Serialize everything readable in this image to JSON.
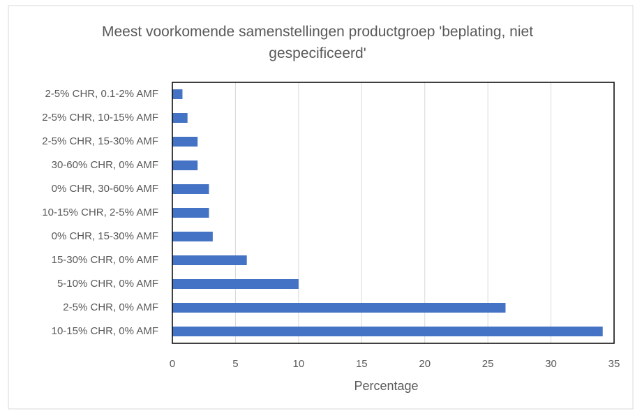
{
  "chart_data": {
    "type": "hbar",
    "title": "Meest voorkomende samenstellingen productgroep 'beplating, niet gespecificeerd'",
    "x_label": "Percentage",
    "categories": [
      "2-5% CHR, 0.1-2% AMF",
      "2-5% CHR, 10-15% AMF",
      "2-5% CHR, 15-30% AMF",
      "30-60% CHR, 0% AMF",
      "0% CHR, 30-60% AMF",
      "10-15% CHR, 2-5% AMF",
      "0% CHR, 15-30% AMF",
      "15-30% CHR, 0% AMF",
      "5-10% CHR, 0% AMF",
      "2-5% CHR, 0% AMF",
      "10-15% CHR, 0% AMF"
    ],
    "values": [
      0.8,
      1.2,
      2.0,
      2.0,
      2.9,
      2.9,
      3.2,
      5.9,
      10.0,
      26.4,
      34.1
    ],
    "color": "#4472c4",
    "xlim": [
      0,
      35
    ],
    "xticks": [
      0,
      5,
      10,
      15,
      20,
      25,
      30,
      35
    ],
    "grid": true
  }
}
